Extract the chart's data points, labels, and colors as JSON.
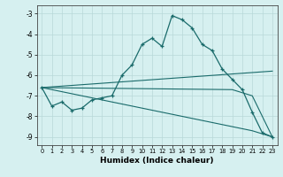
{
  "xlabel": "Humidex (Indice chaleur)",
  "background_color": "#d6f0f0",
  "grid_color": "#b8d8d8",
  "line_color": "#1a6b6b",
  "xlim": [
    -0.5,
    23.5
  ],
  "ylim": [
    -9.4,
    -2.6
  ],
  "yticks": [
    -9,
    -8,
    -7,
    -6,
    -5,
    -4,
    -3
  ],
  "xticks": [
    0,
    1,
    2,
    3,
    4,
    5,
    6,
    7,
    8,
    9,
    10,
    11,
    12,
    13,
    14,
    15,
    16,
    17,
    18,
    19,
    20,
    21,
    22,
    23
  ],
  "line1_x": [
    0,
    1,
    2,
    3,
    4,
    5,
    6,
    7,
    8,
    9,
    10,
    11,
    12,
    13,
    14,
    15,
    16,
    17,
    18,
    19,
    20,
    21,
    22,
    23
  ],
  "line1_y": [
    -6.6,
    -7.5,
    -7.3,
    -7.7,
    -7.6,
    -7.2,
    -7.1,
    -7.0,
    -6.0,
    -5.5,
    -4.5,
    -4.2,
    -4.6,
    -3.1,
    -3.3,
    -3.7,
    -4.5,
    -4.8,
    -5.7,
    -6.2,
    -6.7,
    -7.8,
    -8.8,
    -9.0
  ],
  "line2_x": [
    0,
    23
  ],
  "line2_y": [
    -6.6,
    -5.8
  ],
  "line3_x": [
    0,
    19,
    21,
    23
  ],
  "line3_y": [
    -6.6,
    -6.7,
    -7.0,
    -9.0
  ],
  "line4_x": [
    0,
    19,
    21,
    23
  ],
  "line4_y": [
    -6.6,
    -8.5,
    -8.7,
    -9.0
  ]
}
